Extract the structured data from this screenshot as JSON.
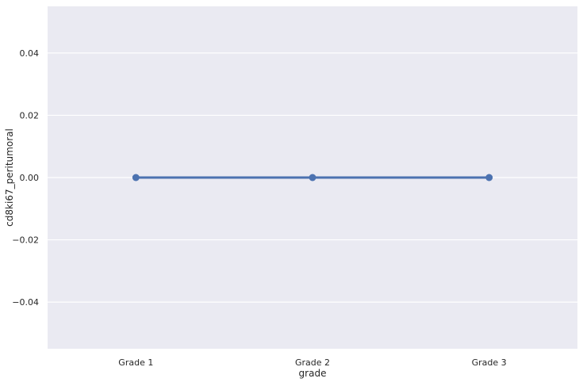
{
  "chart_data": {
    "type": "line",
    "categories": [
      "Grade 1",
      "Grade 2",
      "Grade 3"
    ],
    "values": [
      0.0,
      0.0,
      0.0
    ],
    "xlabel": "grade",
    "ylabel": "cd8ki67_peritumoral",
    "ylim": [
      -0.055,
      0.055
    ],
    "yticks": [
      -0.04,
      -0.02,
      0.0,
      0.02,
      0.04
    ],
    "ytick_labels": [
      "−0.04",
      "−0.02",
      "0.00",
      "0.02",
      "0.04"
    ],
    "grid": true,
    "colors": {
      "background": "#eaeaf2",
      "grid": "#ffffff",
      "series": "#4c72b0"
    }
  }
}
